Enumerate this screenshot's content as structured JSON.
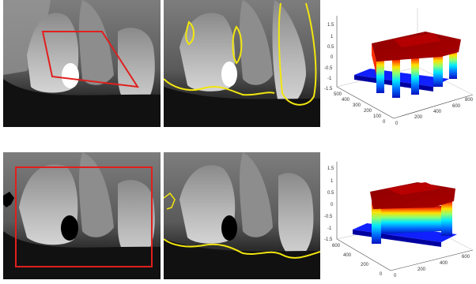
{
  "figure": {
    "rows": [
      {
        "id": "top",
        "xray_overlay": {
          "shape": "quadrilateral",
          "color": "#e0201e",
          "filling": "bright"
        },
        "segmentation": {
          "contour_color": "#f2e60f",
          "filling": "bright"
        },
        "surface_plot": {
          "z_ticks": [
            "1.5",
            "1",
            "0.5",
            "0",
            "-0.5",
            "-1",
            "-1.5"
          ],
          "y_ticks": [
            "500",
            "400",
            "300",
            "200",
            "100",
            "0"
          ],
          "x_ticks": [
            "0",
            "200",
            "400",
            "600",
            "800"
          ]
        }
      },
      {
        "id": "bottom",
        "xray_overlay": {
          "shape": "rectangle",
          "color": "#e0201e",
          "filling": "dark"
        },
        "segmentation": {
          "contour_color": "#f2e60f",
          "filling": "dark"
        },
        "surface_plot": {
          "z_ticks": [
            "1.5",
            "1",
            "0.5",
            "0",
            "-0.5",
            "-1",
            "-1.5"
          ],
          "y_ticks": [
            "600",
            "400",
            "200",
            "0"
          ],
          "x_ticks": [
            "0",
            "200",
            "400",
            "600"
          ]
        }
      }
    ],
    "colormap": [
      "#00008f",
      "#0050ff",
      "#00dfff",
      "#70ff8f",
      "#ffef00",
      "#ff6000",
      "#9f0000"
    ]
  }
}
